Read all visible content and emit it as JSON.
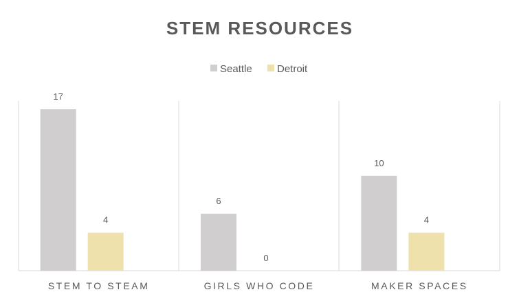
{
  "chart_data": {
    "type": "bar",
    "title": "STEM RESOURCES",
    "categories": [
      "STEM TO STEAM",
      "GIRLS WHO CODE",
      "MAKER SPACES"
    ],
    "series": [
      {
        "name": "Seattle",
        "values": [
          17,
          6,
          10
        ],
        "color": "#d0cece"
      },
      {
        "name": "Detroit",
        "values": [
          4,
          0,
          4
        ],
        "color": "#efe1ac"
      }
    ],
    "ylim": [
      0,
      17
    ],
    "grid": false,
    "legend_position": "top",
    "data_labels": true,
    "divider_color": "#d9d9d9",
    "text_color": "#595959"
  }
}
